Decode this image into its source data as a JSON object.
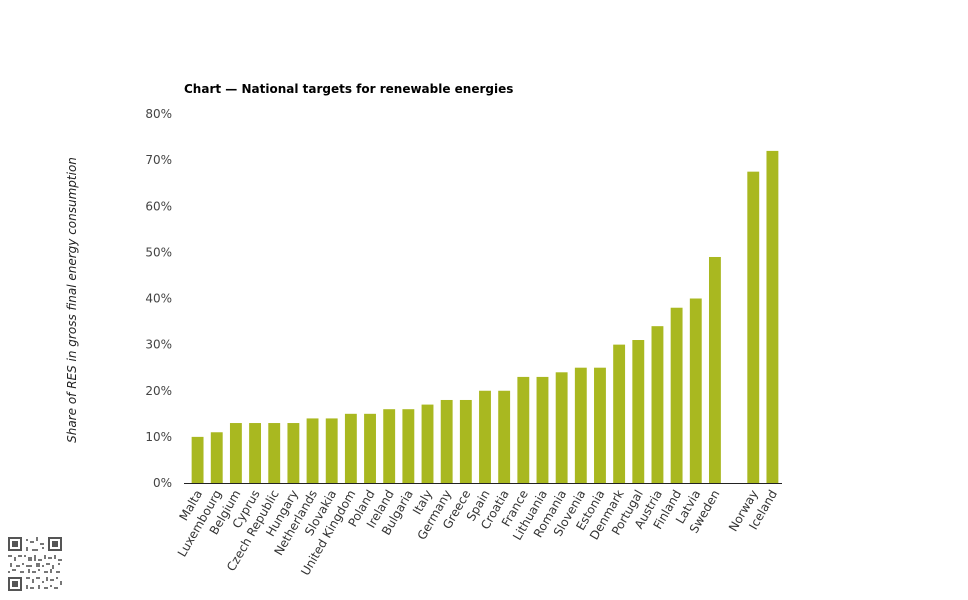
{
  "chart_data": {
    "type": "bar",
    "title": "Chart — National targets for renewable energies",
    "ylabel": "Share of RES in gross final energy consumption",
    "xlabel": "",
    "y_tick_labels": [
      "0%",
      "10%",
      "20%",
      "30%",
      "40%",
      "50%",
      "60%",
      "70%",
      "80%"
    ],
    "ylim": [
      0,
      80
    ],
    "grid": false,
    "bar_color": "#a9b820",
    "categories": [
      "Malta",
      "Luxembourg",
      "Belgium",
      "Cyprus",
      "Czech Republic",
      "Hungary",
      "Netherlands",
      "Slovakia",
      "United Kingdom",
      "Poland",
      "Ireland",
      "Bulgaria",
      "Italy",
      "Germany",
      "Greece",
      "Spain",
      "Croatia",
      "France",
      "Lithuania",
      "Romania",
      "Slovenia",
      "Estonia",
      "Denmark",
      "Portugal",
      "Austria",
      "Finland",
      "Latvia",
      "Sweden",
      "Norway",
      "Iceland"
    ],
    "values": [
      10,
      11,
      13,
      13,
      13,
      13,
      14,
      14,
      15,
      15,
      16,
      16,
      17,
      18,
      18,
      20,
      20,
      23,
      23,
      24,
      25,
      25,
      30,
      31,
      34,
      38,
      40,
      49,
      67.5,
      72
    ]
  }
}
